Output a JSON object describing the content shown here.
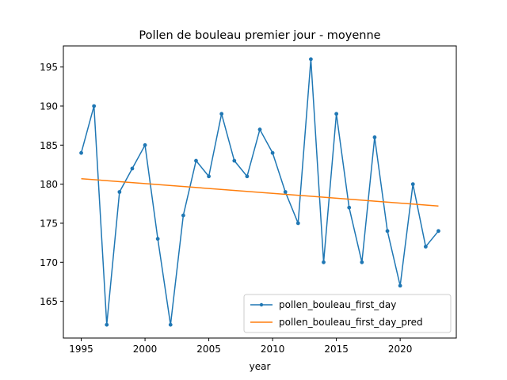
{
  "chart_data": {
    "type": "line",
    "title": "Pollen de bouleau premier jour - moyenne",
    "xlabel": "year",
    "ylabel": "",
    "xlim": [
      1993.6,
      2024.4
    ],
    "ylim": [
      160.3,
      197.7
    ],
    "xticks": [
      1995,
      2000,
      2005,
      2010,
      2015,
      2020
    ],
    "yticks": [
      165,
      170,
      175,
      180,
      185,
      190,
      195
    ],
    "grid": false,
    "legend": "lower-right",
    "x": [
      1995,
      1996,
      1997,
      1998,
      1999,
      2000,
      2001,
      2002,
      2003,
      2004,
      2005,
      2006,
      2007,
      2008,
      2009,
      2010,
      2011,
      2012,
      2013,
      2014,
      2015,
      2016,
      2017,
      2018,
      2019,
      2020,
      2021,
      2022,
      2023
    ],
    "series": [
      {
        "name": "pollen_bouleau_first_day",
        "color": "#1f77b4",
        "marker": "point",
        "values": [
          184,
          190,
          162,
          179,
          182,
          185,
          173,
          162,
          176,
          183,
          181,
          189,
          183,
          181,
          187,
          184,
          179,
          175,
          196,
          170,
          189,
          177,
          170,
          186,
          174,
          167,
          180,
          172,
          174
        ]
      },
      {
        "name": "pollen_bouleau_first_day_pred",
        "color": "#ff7f0e",
        "marker": "none",
        "values": [
          180.7,
          177.2
        ],
        "x": [
          1995,
          2023
        ]
      }
    ]
  }
}
